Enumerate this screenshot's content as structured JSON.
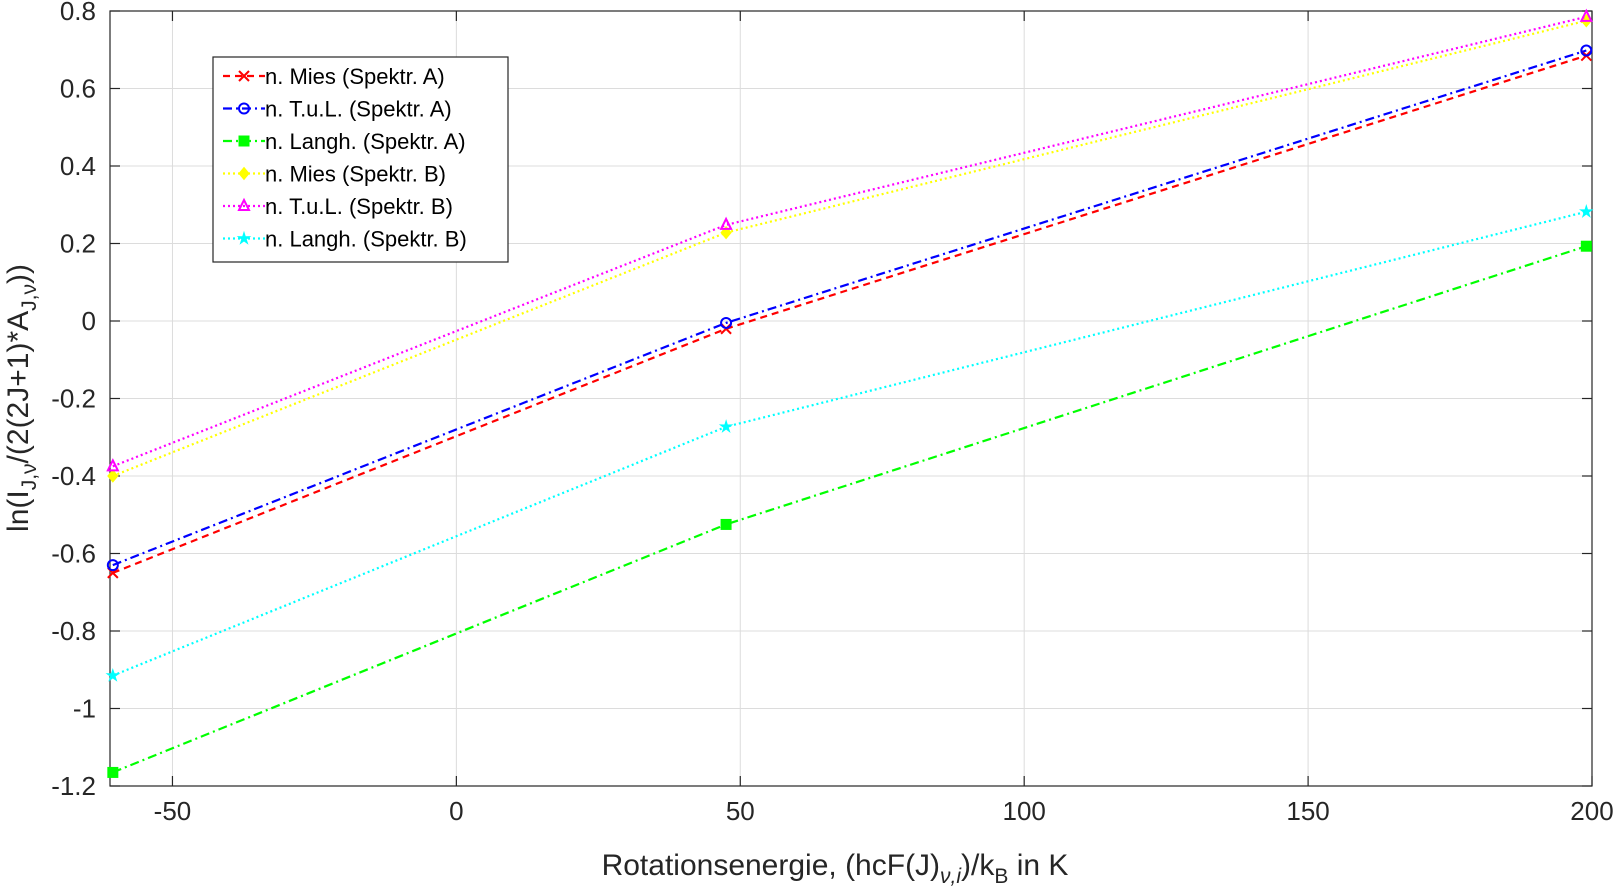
{
  "chart_data": {
    "type": "line",
    "title": "",
    "xlabel": {
      "main": "Rotationsenergie, (hcF(J)",
      "sub1": "ν,i",
      "mid": ")/k",
      "sub2": "B",
      "end": " in K"
    },
    "ylabel": {
      "p1": "ln(I",
      "s1": "J,ν",
      "p2": "/(2(2J+1)*A",
      "s2": "J,ν",
      "p3": "))"
    },
    "xlim": [
      -61,
      200
    ],
    "ylim": [
      -1.2,
      0.8
    ],
    "xticks": [
      -50,
      0,
      50,
      100,
      150,
      200
    ],
    "xtick_labels": [
      "-50",
      "0",
      "50",
      "100",
      "150",
      "200"
    ],
    "yticks": [
      -1.2,
      -1,
      -0.8,
      -0.6,
      -0.4,
      -0.2,
      0,
      0.2,
      0.4,
      0.6,
      0.8
    ],
    "ytick_labels": [
      "-1.2",
      "-1",
      "-0.8",
      "-0.6",
      "-0.4",
      "-0.2",
      "0",
      "0.2",
      "0.4",
      "0.6",
      "0.8"
    ],
    "grid": true,
    "legend_position": "top-left",
    "x": [
      -60.5,
      47.5,
      199
    ],
    "series": [
      {
        "name": "n. Mies (Spektr. A)",
        "color": "#ff0000",
        "marker": "x",
        "dash": "dash",
        "values": [
          -0.65,
          -0.02,
          0.685
        ]
      },
      {
        "name": "n. T.u.L. (Spektr. A)",
        "color": "#0000ff",
        "marker": "circle",
        "dash": "dashdot",
        "values": [
          -0.63,
          -0.005,
          0.698
        ]
      },
      {
        "name": "n. Langh. (Spektr. A)",
        "color": "#00ff00",
        "marker": "square",
        "dash": "dashdot",
        "values": [
          -1.165,
          -0.525,
          0.193
        ]
      },
      {
        "name": "n. Mies (Spektr. B)",
        "color": "#ffff00",
        "marker": "diamond",
        "dash": "dot",
        "values": [
          -0.4,
          0.228,
          0.775
        ]
      },
      {
        "name": "n. T.u.L. (Spektr. B)",
        "color": "#ff00ff",
        "marker": "triangle",
        "dash": "dot",
        "values": [
          -0.375,
          0.248,
          0.785
        ]
      },
      {
        "name": "n. Langh. (Spektr. B)",
        "color": "#00ffff",
        "marker": "star",
        "dash": "dot",
        "values": [
          -0.915,
          -0.273,
          0.282
        ]
      }
    ]
  }
}
